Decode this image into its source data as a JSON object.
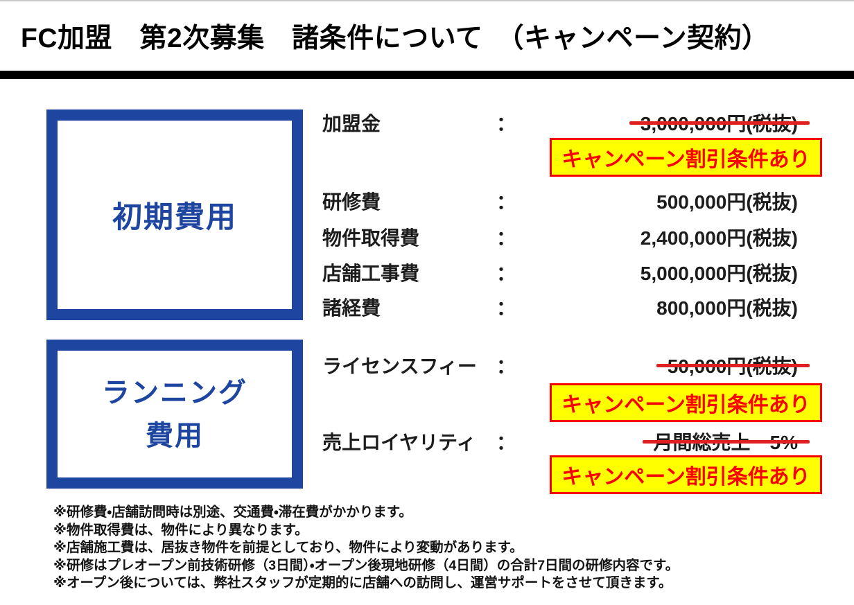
{
  "title": "FC加盟　第2次募集　諸条件について　（キャンペーン契約）",
  "colors": {
    "box_blue": "#1E46A0",
    "strike_red": "#E02020",
    "campaign_red": "#FA0000",
    "badge_yellow": "#FFFF00",
    "divider_black": "#000000"
  },
  "cost_groups": [
    {
      "name": "初期費用",
      "line1": "初期費用",
      "line2": ""
    },
    {
      "name": "ランニング費用",
      "line1": "ランニング",
      "line2": "費用"
    }
  ],
  "fee_rows": [
    {
      "label": "加盟金",
      "colon": "：",
      "value": "3,000,000円(税抜)",
      "struck": true
    },
    {
      "label": "研修費",
      "colon": "：",
      "value": "500,000円(税抜)",
      "struck": false
    },
    {
      "label": "物件取得費",
      "colon": "：",
      "value": "2,400,000円(税抜)",
      "struck": false
    },
    {
      "label": "店舗工事費",
      "colon": "：",
      "value": "5,000,000円(税抜)",
      "struck": false
    },
    {
      "label": "諸経費",
      "colon": "：",
      "value": "800,000円(税抜)",
      "struck": false
    },
    {
      "label": "ライセンスフィー",
      "colon": "：",
      "value": "50,000円(税抜)",
      "struck": true
    },
    {
      "label": "売上ロイヤリティ",
      "colon": "：",
      "value": "月間総売上　5%",
      "struck": true
    }
  ],
  "campaign_note": "キャンペーン割引条件あり",
  "notes": [
    "※研修費・店舗訪問時は別途、交通費・滞在費がかかります。",
    "※物件取得費は、物件により異なります。",
    "※店舗施工費は、居抜き物件を前提としており、物件により変動があります。",
    "※研修はプレオープン前技術研修（3日間）・オープン後現地研修（4日間）の合計7日間の研修内容です。",
    "※オープン後については、弊社スタッフが定期的に店舗への訪問し、運営サポートをさせて頂きます。"
  ]
}
